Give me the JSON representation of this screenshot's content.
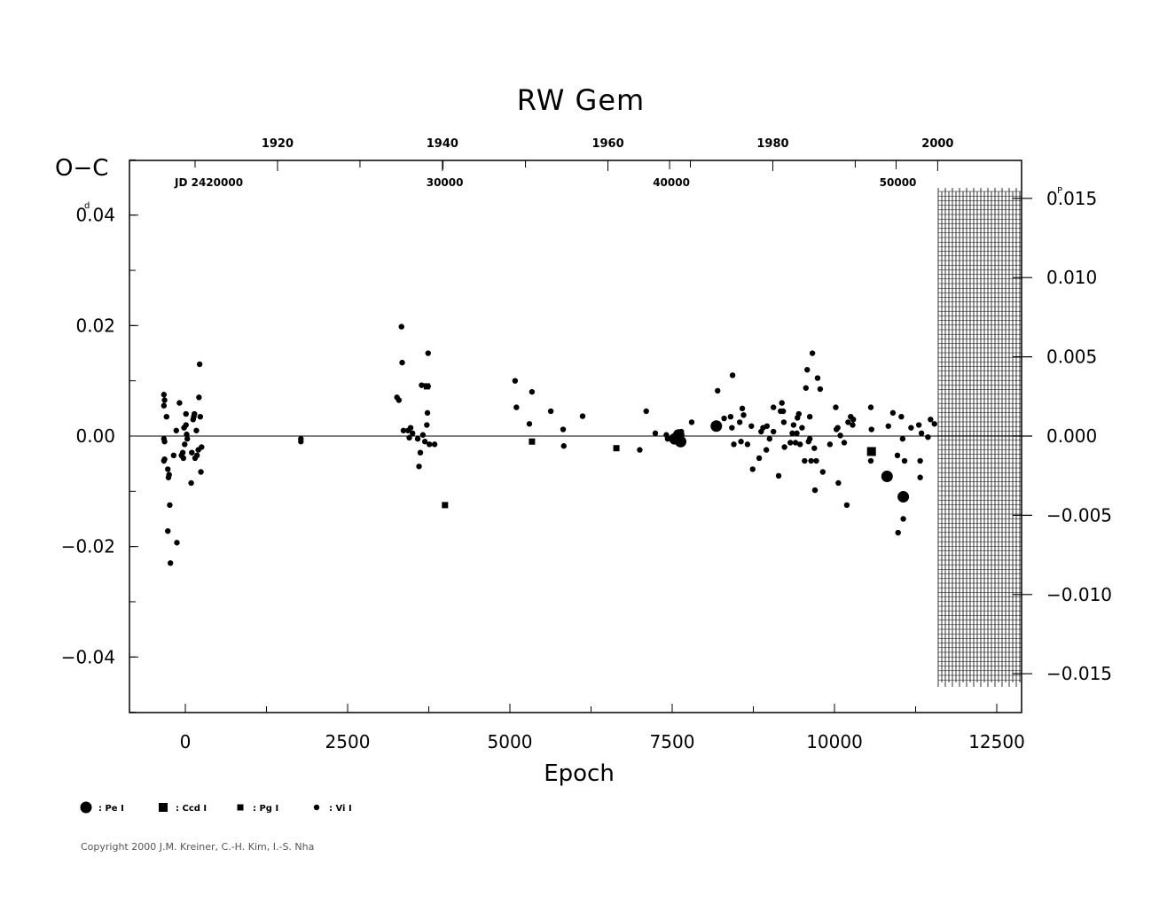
{
  "chart_data": {
    "type": "scatter",
    "title": "RW  Gem",
    "ylabel": "O−C",
    "ylabel_unit": "d",
    "xlabel": "Epoch",
    "right_axis_unit": "P",
    "jd_prefix": "JD  2420000",
    "xlim": [
      -850,
      12900
    ],
    "ylim": [
      -0.05,
      0.05
    ],
    "x_ticks": [
      0,
      2500,
      5000,
      7500,
      10000,
      12500
    ],
    "y_ticks": [
      -0.04,
      -0.02,
      0.0,
      0.02,
      0.04
    ],
    "y_tick_labels": [
      "−0.04",
      "−0.02",
      "0.00",
      "0.02",
      "0.04"
    ],
    "right_ticks": [
      -0.015,
      -0.01,
      -0.005,
      0.0,
      0.005,
      0.01,
      0.015
    ],
    "right_tick_labels": [
      "−0.015",
      "−0.010",
      "−0.005",
      "0.000",
      "0.005",
      "0.010",
      "0.015"
    ],
    "top_year_ticks": [
      {
        "epoch": 1420,
        "label": "1920"
      },
      {
        "epoch": 2690,
        "label": ""
      },
      {
        "epoch": 3960,
        "label": "1940"
      },
      {
        "epoch": 5240,
        "label": ""
      },
      {
        "epoch": 6510,
        "label": "1960"
      },
      {
        "epoch": 7780,
        "label": ""
      },
      {
        "epoch": 9050,
        "label": "1980"
      },
      {
        "epoch": 10320,
        "label": ""
      },
      {
        "epoch": 11590,
        "label": "2000"
      },
      {
        "epoch": 150,
        "label": ""
      }
    ],
    "top_jd_ticks": [
      {
        "epoch": 3970,
        "label": "30000"
      },
      {
        "epoch": 7460,
        "label": "40000"
      },
      {
        "epoch": 10950,
        "label": "50000"
      }
    ],
    "legend": [
      {
        "marker": "Pe",
        "label": ": Pe  I"
      },
      {
        "marker": "Ccd",
        "label": ": Ccd  I"
      },
      {
        "marker": "Pg",
        "label": ": Pg  I"
      },
      {
        "marker": "Vi",
        "label": ": Vi  I"
      }
    ],
    "series": [
      {
        "marker": "Vi",
        "points": [
          [
            -330,
            0.0075
          ],
          [
            -330,
            0.0055
          ],
          [
            -320,
            0.0065
          ],
          [
            -320,
            -0.001
          ],
          [
            -330,
            -0.0005
          ],
          [
            -330,
            -0.0045
          ],
          [
            -320,
            -0.0042
          ],
          [
            -290,
            0.0035
          ],
          [
            -270,
            -0.006
          ],
          [
            -260,
            -0.0075
          ],
          [
            -250,
            -0.007
          ],
          [
            -240,
            -0.0125
          ],
          [
            -270,
            -0.0172
          ],
          [
            -230,
            -0.023
          ],
          [
            -180,
            -0.0035
          ],
          [
            -140,
            0.001
          ],
          [
            -130,
            -0.0193
          ],
          [
            -90,
            0.006
          ],
          [
            -60,
            -0.0035
          ],
          [
            -40,
            -0.003
          ],
          [
            -30,
            -0.004
          ],
          [
            -20,
            0.0015
          ],
          [
            -10,
            -0.0015
          ],
          [
            10,
            0.004
          ],
          [
            10,
            0.002
          ],
          [
            20,
            0.0003
          ],
          [
            30,
            -0.0005
          ],
          [
            90,
            -0.0085
          ],
          [
            100,
            -0.003
          ],
          [
            120,
            0.003
          ],
          [
            130,
            0.0035
          ],
          [
            140,
            0.004
          ],
          [
            150,
            -0.004
          ],
          [
            170,
            0.001
          ],
          [
            180,
            -0.0035
          ],
          [
            200,
            -0.0025
          ],
          [
            210,
            0.007
          ],
          [
            220,
            0.013
          ],
          [
            230,
            0.0035
          ],
          [
            240,
            -0.0065
          ],
          [
            250,
            -0.002
          ],
          [
            1780,
            -0.0005
          ],
          [
            1780,
            -0.001
          ],
          [
            3260,
            0.007
          ],
          [
            3290,
            0.0065
          ],
          [
            3330,
            0.0198
          ],
          [
            3340,
            0.0133
          ],
          [
            3360,
            0.001
          ],
          [
            3430,
            0.001
          ],
          [
            3450,
            -0.0003
          ],
          [
            3470,
            0.0015
          ],
          [
            3500,
            0.0005
          ],
          [
            3580,
            -0.0005
          ],
          [
            3600,
            -0.0055
          ],
          [
            3620,
            -0.003
          ],
          [
            3640,
            0.0092
          ],
          [
            3660,
            0.0002
          ],
          [
            3690,
            -0.001
          ],
          [
            3720,
            0.002
          ],
          [
            3730,
            0.0042
          ],
          [
            3740,
            0.015
          ],
          [
            3740,
            0.009
          ],
          [
            3760,
            -0.0015
          ],
          [
            3840,
            -0.0015
          ],
          [
            5080,
            0.01
          ],
          [
            5100,
            0.0052
          ],
          [
            5300,
            0.0022
          ],
          [
            5340,
            0.008
          ],
          [
            5630,
            0.0045
          ],
          [
            5820,
            0.0012
          ],
          [
            5830,
            -0.0018
          ],
          [
            6120,
            0.0036
          ],
          [
            7000,
            -0.0025
          ],
          [
            7100,
            0.0045
          ],
          [
            7240,
            0.0005
          ],
          [
            7410,
            0.0002
          ],
          [
            7430,
            -0.0005
          ],
          [
            7520,
            -0.001
          ],
          [
            7640,
            0.0008
          ],
          [
            7800,
            0.0025
          ],
          [
            8200,
            0.0082
          ],
          [
            8300,
            0.0032
          ],
          [
            8400,
            0.0035
          ],
          [
            8420,
            0.0015
          ],
          [
            8430,
            0.011
          ],
          [
            8450,
            -0.0015
          ],
          [
            8540,
            0.0025
          ],
          [
            8560,
            -0.001
          ],
          [
            8580,
            0.005
          ],
          [
            8600,
            0.0038
          ],
          [
            8660,
            -0.0015
          ],
          [
            8720,
            0.0018
          ],
          [
            8740,
            -0.006
          ],
          [
            8840,
            -0.004
          ],
          [
            8870,
            0.0008
          ],
          [
            8900,
            0.0015
          ],
          [
            8950,
            -0.0025
          ],
          [
            8960,
            0.0018
          ],
          [
            9000,
            -0.0005
          ],
          [
            9060,
            0.0008
          ],
          [
            9060,
            0.0052
          ],
          [
            9140,
            -0.0072
          ],
          [
            9170,
            0.0045
          ],
          [
            9190,
            0.006
          ],
          [
            9210,
            0.0045
          ],
          [
            9220,
            0.0025
          ],
          [
            9230,
            -0.002
          ],
          [
            9320,
            -0.0012
          ],
          [
            9350,
            0.0005
          ],
          [
            9370,
            0.002
          ],
          [
            9400,
            -0.0012
          ],
          [
            9420,
            0.0005
          ],
          [
            9430,
            0.0033
          ],
          [
            9450,
            0.004
          ],
          [
            9470,
            -0.0015
          ],
          [
            9500,
            0.0015
          ],
          [
            9540,
            -0.0045
          ],
          [
            9560,
            0.0087
          ],
          [
            9580,
            0.012
          ],
          [
            9600,
            -0.001
          ],
          [
            9620,
            0.0035
          ],
          [
            9620,
            -0.0005
          ],
          [
            9640,
            -0.0045
          ],
          [
            9660,
            0.015
          ],
          [
            9690,
            -0.0022
          ],
          [
            9700,
            -0.0098
          ],
          [
            9720,
            -0.0045
          ],
          [
            9740,
            0.0105
          ],
          [
            9780,
            0.0085
          ],
          [
            9820,
            -0.0065
          ],
          [
            9930,
            -0.0015
          ],
          [
            10020,
            0.0052
          ],
          [
            10030,
            0.0012
          ],
          [
            10050,
            0.0015
          ],
          [
            10060,
            -0.0085
          ],
          [
            10090,
            0.0001
          ],
          [
            10150,
            -0.0012
          ],
          [
            10190,
            -0.0125
          ],
          [
            10210,
            0.0025
          ],
          [
            10250,
            0.0035
          ],
          [
            10280,
            0.002
          ],
          [
            10290,
            0.003
          ],
          [
            10560,
            -0.0045
          ],
          [
            10560,
            0.0052
          ],
          [
            10570,
            0.0012
          ],
          [
            10830,
            0.0018
          ],
          [
            10900,
            0.0042
          ],
          [
            10970,
            -0.0035
          ],
          [
            10980,
            -0.0175
          ],
          [
            11030,
            0.0035
          ],
          [
            11050,
            -0.0005
          ],
          [
            11060,
            -0.015
          ],
          [
            11080,
            -0.0045
          ],
          [
            11180,
            0.0015
          ],
          [
            11300,
            0.002
          ],
          [
            11320,
            -0.0075
          ],
          [
            11320,
            -0.0045
          ],
          [
            11340,
            0.0005
          ],
          [
            11440,
            -0.0002
          ],
          [
            11480,
            0.003
          ],
          [
            11540,
            0.0022
          ]
        ]
      },
      {
        "marker": "Pg",
        "points": [
          [
            3720,
            0.009
          ],
          [
            4000,
            -0.0125
          ],
          [
            5340,
            -0.001
          ],
          [
            6640,
            -0.0022
          ]
        ]
      },
      {
        "marker": "Ccd",
        "points": [
          [
            10570,
            -0.0028
          ]
        ]
      },
      {
        "marker": "Pe",
        "points": [
          [
            7540,
            -0.0005
          ],
          [
            7600,
            0.0002
          ],
          [
            7630,
            -0.001
          ],
          [
            8180,
            0.0018
          ],
          [
            10810,
            -0.0073
          ],
          [
            11060,
            -0.011
          ]
        ]
      }
    ]
  },
  "copyright": "Copyright 2000 J.M. Kreiner, C.-H. Kim, I.-S. Nha"
}
